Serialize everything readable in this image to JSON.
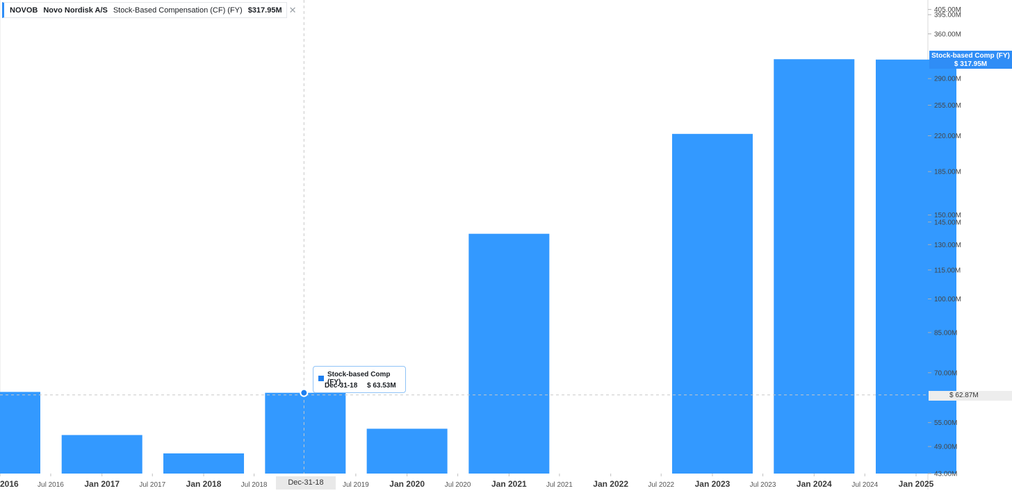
{
  "header": {
    "ticker": "NOVOB",
    "company": "Novo Nordisk A/S",
    "series": "Stock-Based Compensation (CF) (FY)",
    "value": "$317.95M",
    "close_icon": "close-icon"
  },
  "tooltip": {
    "title": "Stock-based Comp (FY)",
    "date": "Dec-31-18",
    "value": "$ 63.53M"
  },
  "right_label": {
    "line1": "Stock-based Comp (FY)",
    "line2": "$ 317.95M"
  },
  "hover": {
    "price": "$ 62.87M",
    "date": "Dec-31-18"
  },
  "colors": {
    "bar": "#3399ff",
    "accent": "#2f8df6",
    "grid": "#e8e8e8",
    "crosshair": "#c8c8c8"
  },
  "chart_data": {
    "type": "bar",
    "scale": "log",
    "ylim": [
      43,
      410
    ],
    "x_ticks": [
      {
        "label": "2016",
        "date": "2016-01-01",
        "major": true
      },
      {
        "label": "Jul 2016",
        "date": "2016-07-01",
        "major": false
      },
      {
        "label": "Jan 2017",
        "date": "2017-01-01",
        "major": true
      },
      {
        "label": "Jul 2017",
        "date": "2017-07-01",
        "major": false
      },
      {
        "label": "Jan 2018",
        "date": "2018-01-01",
        "major": true
      },
      {
        "label": "Jul 2018",
        "date": "2018-07-01",
        "major": false
      },
      {
        "label": "Jul 2019",
        "date": "2019-07-01",
        "major": false
      },
      {
        "label": "Jan 2020",
        "date": "2020-01-01",
        "major": true
      },
      {
        "label": "Jul 2020",
        "date": "2020-07-01",
        "major": false
      },
      {
        "label": "Jan 2021",
        "date": "2021-01-01",
        "major": true
      },
      {
        "label": "Jul 2021",
        "date": "2021-07-01",
        "major": false
      },
      {
        "label": "Jan 2022",
        "date": "2022-01-01",
        "major": true
      },
      {
        "label": "Jul 2022",
        "date": "2022-07-01",
        "major": false
      },
      {
        "label": "Jan 2023",
        "date": "2023-01-01",
        "major": true
      },
      {
        "label": "Jul 2023",
        "date": "2023-07-01",
        "major": false
      },
      {
        "label": "Jan 2024",
        "date": "2024-01-01",
        "major": true
      },
      {
        "label": "Jul 2024",
        "date": "2024-07-01",
        "major": false
      },
      {
        "label": "Jan 2025",
        "date": "2025-01-01",
        "major": true
      }
    ],
    "y_ticks": [
      {
        "label": "405.00M",
        "value": 405
      },
      {
        "label": "395.00M",
        "value": 395
      },
      {
        "label": "360.00M",
        "value": 360
      },
      {
        "label": "290.00M",
        "value": 290
      },
      {
        "label": "255.00M",
        "value": 255
      },
      {
        "label": "220.00M",
        "value": 220
      },
      {
        "label": "185.00M",
        "value": 185
      },
      {
        "label": "150.00M",
        "value": 150
      },
      {
        "label": "145.00M",
        "value": 145
      },
      {
        "label": "130.00M",
        "value": 130
      },
      {
        "label": "115.00M",
        "value": 115
      },
      {
        "label": "100.00M",
        "value": 100
      },
      {
        "label": "85.00M",
        "value": 85
      },
      {
        "label": "70.00M",
        "value": 70
      },
      {
        "label": "55.00M",
        "value": 55
      },
      {
        "label": "49.00M",
        "value": 49
      },
      {
        "label": "43.00M",
        "value": 43
      }
    ],
    "series": [
      {
        "values": [
          {
            "date": "2016-01-01",
            "value": 63.8
          },
          {
            "date": "2017-01-01",
            "value": 51.8
          },
          {
            "date": "2018-01-01",
            "value": 47.4
          },
          {
            "date": "2019-01-01",
            "value": 63.53
          },
          {
            "date": "2020-01-01",
            "value": 53.4
          },
          {
            "date": "2021-01-01",
            "value": 137
          },
          {
            "date": "2023-01-01",
            "value": 222
          },
          {
            "date": "2024-01-01",
            "value": 318.5
          },
          {
            "date": "2025-01-01",
            "value": 317.95
          }
        ]
      }
    ],
    "hover_value": 62.87
  }
}
